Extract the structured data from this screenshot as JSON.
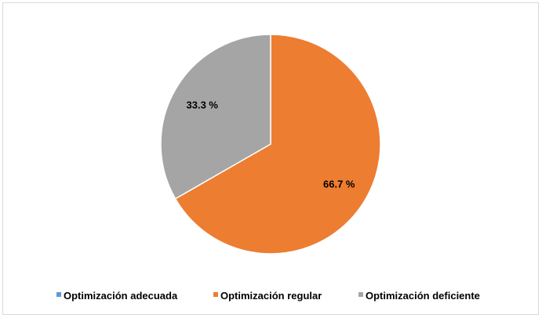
{
  "chart_data": {
    "type": "pie",
    "categories": [
      "Optimización adecuada",
      "Optimización regular",
      "Optimización deficiente"
    ],
    "values": [
      0,
      66.7,
      33.3
    ],
    "labels": [
      "",
      "66.7 %",
      "33.3 %"
    ],
    "colors": [
      "#5b9bd5",
      "#ed7d31",
      "#a5a5a5"
    ],
    "start_angle_deg": 0,
    "direction": "clockwise",
    "legend_position": "bottom"
  }
}
